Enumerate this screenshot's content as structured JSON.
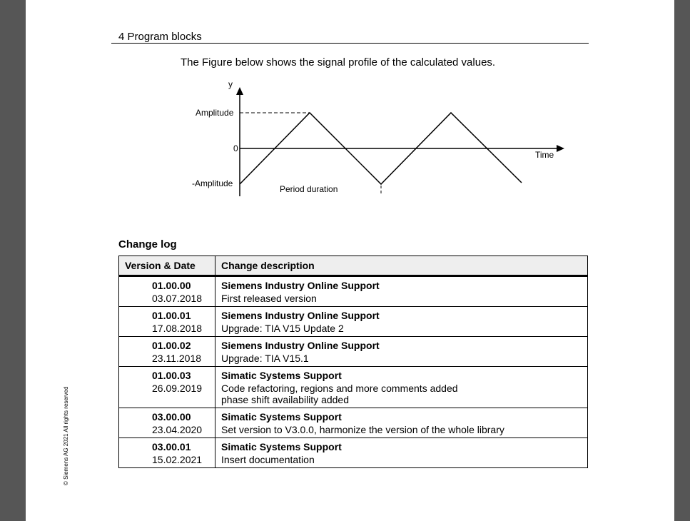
{
  "viewer": {
    "background": "#565656"
  },
  "page": {
    "header": "4 Program blocks",
    "intro": "The Figure below shows the signal profile of the calculated values.",
    "figure": {
      "y_label": "y",
      "x_label": "Time",
      "amplitude_label": "Amplitude",
      "zero_label": "0",
      "neg_amplitude_label": "-Amplitude",
      "period_label": "Period duration"
    },
    "changelog_title": "Change log",
    "table": {
      "headers": [
        "Version & Date",
        "Change description"
      ],
      "rows": [
        {
          "version": "01.00.00",
          "date": "03.07.2018",
          "author": "Siemens Industry Online Support",
          "desc": [
            "First released version"
          ]
        },
        {
          "version": "01.00.01",
          "date": "17.08.2018",
          "author": "Siemens Industry Online Support",
          "desc": [
            "Upgrade: TIA V15 Update 2"
          ]
        },
        {
          "version": "01.00.02",
          "date": "23.11.2018",
          "author": "Siemens Industry Online Support",
          "desc": [
            "Upgrade: TIA V15.1"
          ]
        },
        {
          "version": "01.00.03",
          "date": "26.09.2019",
          "author": "Simatic Systems Support",
          "desc": [
            "Code refactoring, regions and more comments added",
            "phase shift availability added"
          ]
        },
        {
          "version": "03.00.00",
          "date": "23.04.2020",
          "author": "Simatic Systems Support",
          "desc": [
            "Set version to V3.0.0, harmonize the version of the whole library"
          ]
        },
        {
          "version": "03.00.01",
          "date": "15.02.2021",
          "author": "Simatic Systems Support",
          "desc": [
            "Insert documentation"
          ]
        }
      ]
    },
    "copyright": "© Siemens AG 2021 All rights reserved"
  }
}
